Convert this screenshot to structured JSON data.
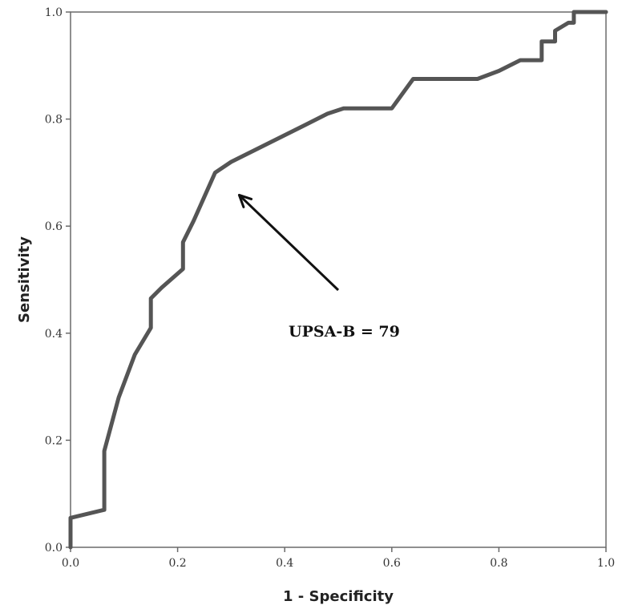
{
  "chart_data": {
    "type": "line",
    "title": "",
    "xlabel": "1 - Specificity",
    "ylabel": "Sensitivity",
    "xlim": [
      0.0,
      1.0
    ],
    "ylim": [
      0.0,
      1.0
    ],
    "x_ticks": [
      "0.0",
      "0.2",
      "0.4",
      "0.6",
      "0.8",
      "1.0"
    ],
    "y_ticks": [
      "0.0",
      "0.2",
      "0.4",
      "0.6",
      "0.8",
      "1.0"
    ],
    "grid": false,
    "legend": "none",
    "line_color": "#555555",
    "series": [
      {
        "x": [
          0.0,
          0.0,
          0.063,
          0.063,
          0.09,
          0.12,
          0.15,
          0.15,
          0.17,
          0.21,
          0.21,
          0.23,
          0.27,
          0.3,
          0.36,
          0.42,
          0.48,
          0.51,
          0.6,
          0.64,
          0.76,
          0.8,
          0.84,
          0.88,
          0.88,
          0.905,
          0.905,
          0.93,
          0.94,
          0.94,
          0.96,
          1.0
        ],
        "y": [
          0.0,
          0.055,
          0.07,
          0.18,
          0.28,
          0.36,
          0.41,
          0.465,
          0.485,
          0.52,
          0.57,
          0.61,
          0.7,
          0.72,
          0.75,
          0.78,
          0.81,
          0.82,
          0.82,
          0.875,
          0.875,
          0.89,
          0.91,
          0.91,
          0.945,
          0.945,
          0.965,
          0.98,
          0.98,
          1.0,
          1.0,
          1.0
        ]
      }
    ],
    "annotation": {
      "text": "UPSA-B = 79",
      "point_x": 0.27,
      "point_y": 0.7
    }
  }
}
